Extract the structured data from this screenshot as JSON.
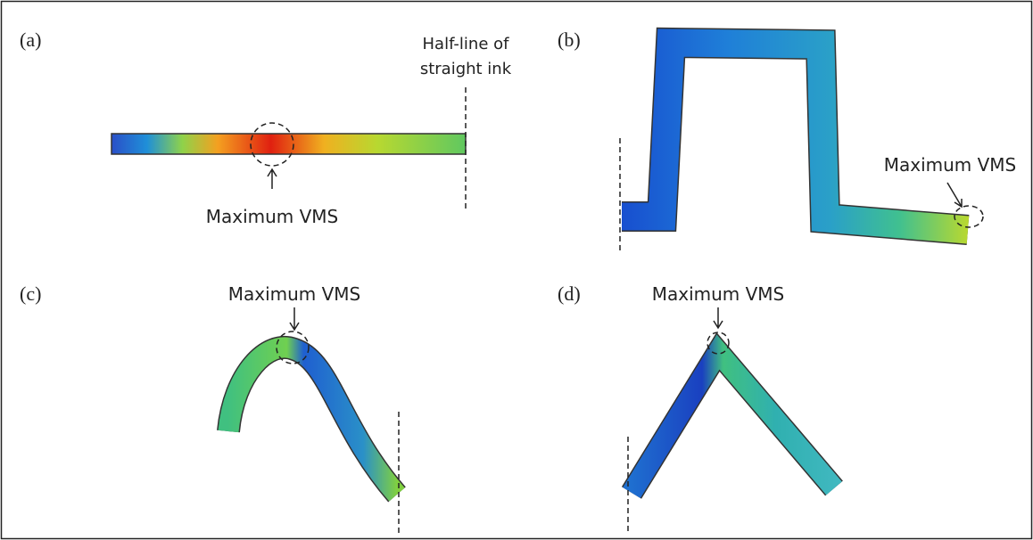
{
  "panels": [
    {
      "label": "(a)",
      "annotation": "Maximum VMS",
      "note_lines": [
        "Half-line of",
        "straight ink"
      ]
    },
    {
      "label": "(b)",
      "annotation": "Maximum VMS"
    },
    {
      "label": "(c)",
      "annotation": "Maximum VMS"
    },
    {
      "label": "(d)",
      "annotation": "Maximum VMS"
    }
  ]
}
